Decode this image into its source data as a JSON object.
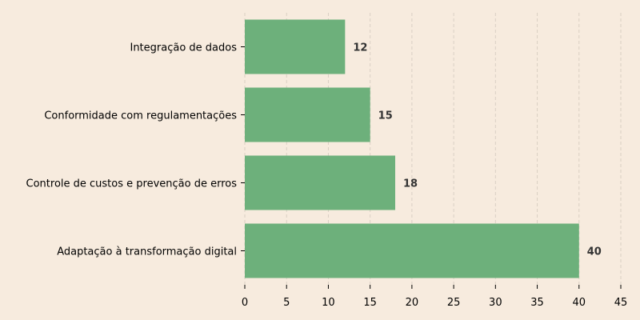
{
  "chart_data": {
    "type": "bar",
    "orientation": "horizontal",
    "categories": [
      "Integração de dados",
      "Conformidade com regulamentações",
      "Controle de custos e prevenção de erros",
      "Adaptação à transformação digital"
    ],
    "values": [
      12,
      15,
      18,
      40
    ],
    "title": "",
    "xlabel": "",
    "ylabel": "",
    "xlim": [
      0,
      45
    ],
    "xticks": [
      "0",
      "5",
      "10",
      "15",
      "20",
      "25",
      "30",
      "35",
      "40",
      "45"
    ],
    "data_labels": [
      "12",
      "15",
      "18",
      "40"
    ],
    "grid": "vertical dashed",
    "legend": "none",
    "colors": {
      "bar": "#6db07b",
      "background": "#f7ebde",
      "grid": "#d9cfc3",
      "value_label": "#333333"
    }
  }
}
